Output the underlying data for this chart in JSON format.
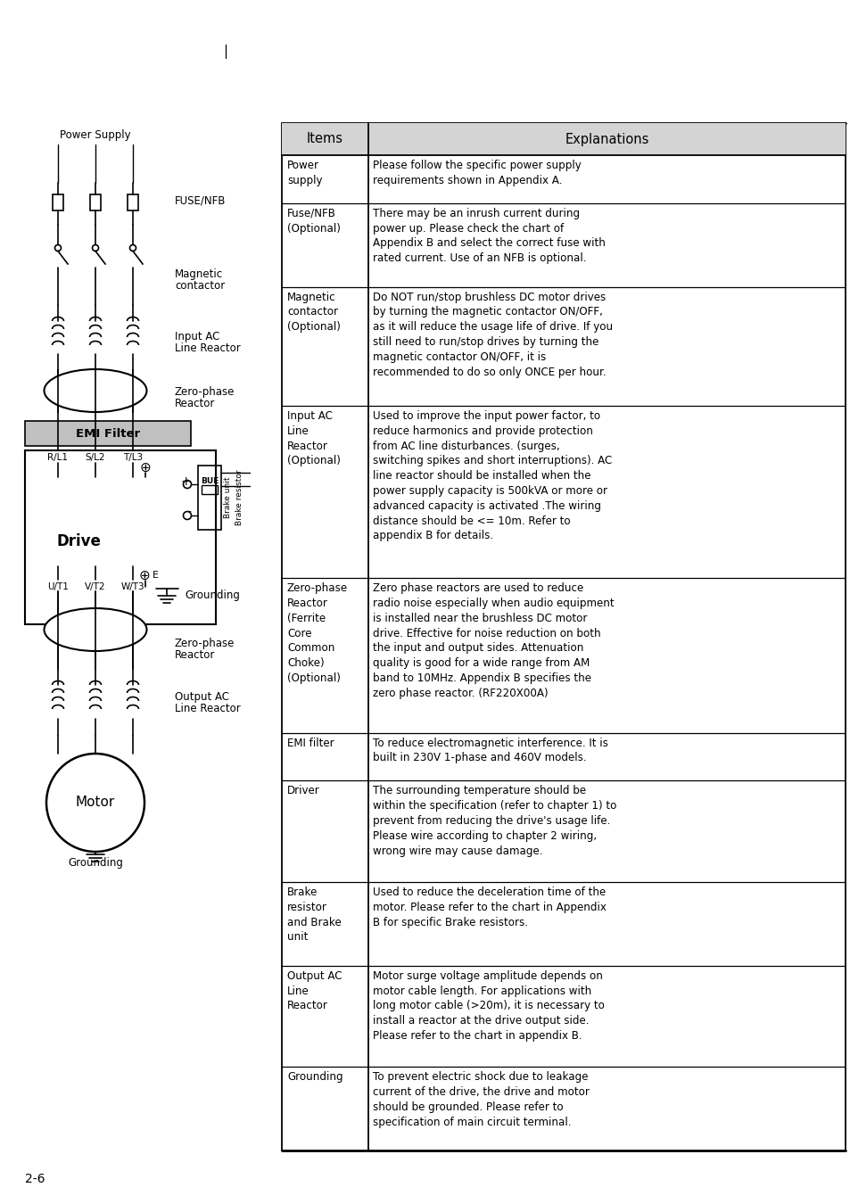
{
  "page_marker": "I",
  "page_number": "2-6",
  "diagram_label": "Power Supply",
  "table_col1_header": "Items",
  "table_col2_header": "Explanations",
  "table_rows": [
    {
      "item": "Power\nsupply",
      "explanation": "Please follow the specific power supply\nrequirements shown in Appendix A."
    },
    {
      "item": "Fuse/NFB\n(Optional)",
      "explanation": "There may be an inrush current during\npower up. Please check the chart of\nAppendix B and select the correct fuse with\nrated current. Use of an NFB is optional."
    },
    {
      "item": "Magnetic\ncontactor\n(Optional)",
      "explanation": "Do NOT run/stop brushless DC motor drives\nby turning the magnetic contactor ON/OFF,\nas it will reduce the usage life of drive. If you\nstill need to run/stop drives by turning the\nmagnetic contactor ON/OFF, it is\nrecommended to do so only ONCE per hour."
    },
    {
      "item": "Input AC\nLine\nReactor\n(Optional)",
      "explanation": "Used to improve the input power factor, to\nreduce harmonics and provide protection\nfrom AC line disturbances. (surges,\nswitching spikes and short interruptions). AC\nline reactor should be installed when the\npower supply capacity is 500kVA or more or\nadvanced capacity is activated .The wiring\ndistance should be <= 10m. Refer to\nappendix B for details."
    },
    {
      "item": "Zero-phase\nReactor\n(Ferrite\nCore\nCommon\nChoke)\n(Optional)",
      "explanation": "Zero phase reactors are used to reduce\nradio noise especially when audio equipment\nis installed near the brushless DC motor\ndrive. Effective for noise reduction on both\nthe input and output sides. Attenuation\nquality is good for a wide range from AM\nband to 10MHz. Appendix B specifies the\nzero phase reactor. (RF220X00A)"
    },
    {
      "item": "EMI filter",
      "explanation": "To reduce electromagnetic interference. It is\nbuilt in 230V 1-phase and 460V models."
    },
    {
      "item": "Driver",
      "explanation": "The surrounding temperature should be\nwithin the specification (refer to chapter 1) to\nprevent from reducing the drive's usage life.\nPlease wire according to chapter 2 wiring,\nwrong wire may cause damage."
    },
    {
      "item": "Brake\nresistor\nand Brake\nunit",
      "explanation": "Used to reduce the deceleration time of the\nmotor. Please refer to the chart in Appendix\nB for specific Brake resistors."
    },
    {
      "item": "Output AC\nLine\nReactor",
      "explanation": "Motor surge voltage amplitude depends on\nmotor cable length. For applications with\nlong motor cable (>20m), it is necessary to\ninstall a reactor at the drive output side.\nPlease refer to the chart in appendix B."
    },
    {
      "item": "Grounding",
      "explanation": "To prevent electric shock due to leakage\ncurrent of the drive, the drive and motor\nshould be grounded. Please refer to\nspecification of main circuit terminal."
    }
  ],
  "bg_color": "#ffffff",
  "text_color": "#000000",
  "line_color": "#000000",
  "header_bg": "#d0d0d0"
}
